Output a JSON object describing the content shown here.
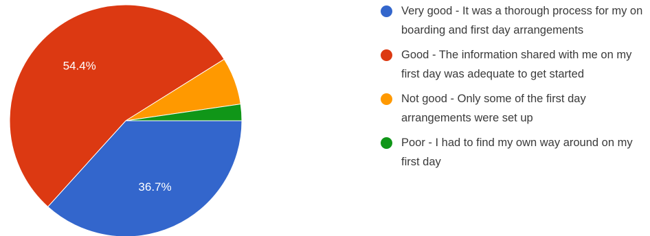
{
  "chart_data": {
    "type": "pie",
    "title": "",
    "slices": [
      {
        "label": "Very good - It was a thorough process for my on boarding and first day arrangements",
        "value": 36.7,
        "display": "36.7%",
        "color": "#3366cc"
      },
      {
        "label": "Good - The information shared with me on my first day was adequate to get started",
        "value": 54.4,
        "display": "54.4%",
        "color": "#dc3912"
      },
      {
        "label": "Not good - Only some of the first day arrangements were set up",
        "value": 6.6,
        "display": "",
        "color": "#ff9900"
      },
      {
        "label": "Poor - I had to find my own way around on my first day",
        "value": 2.3,
        "display": "",
        "color": "#109618"
      }
    ],
    "start_angle_deg": 90,
    "direction": "clockwise",
    "legend_position": "right"
  }
}
